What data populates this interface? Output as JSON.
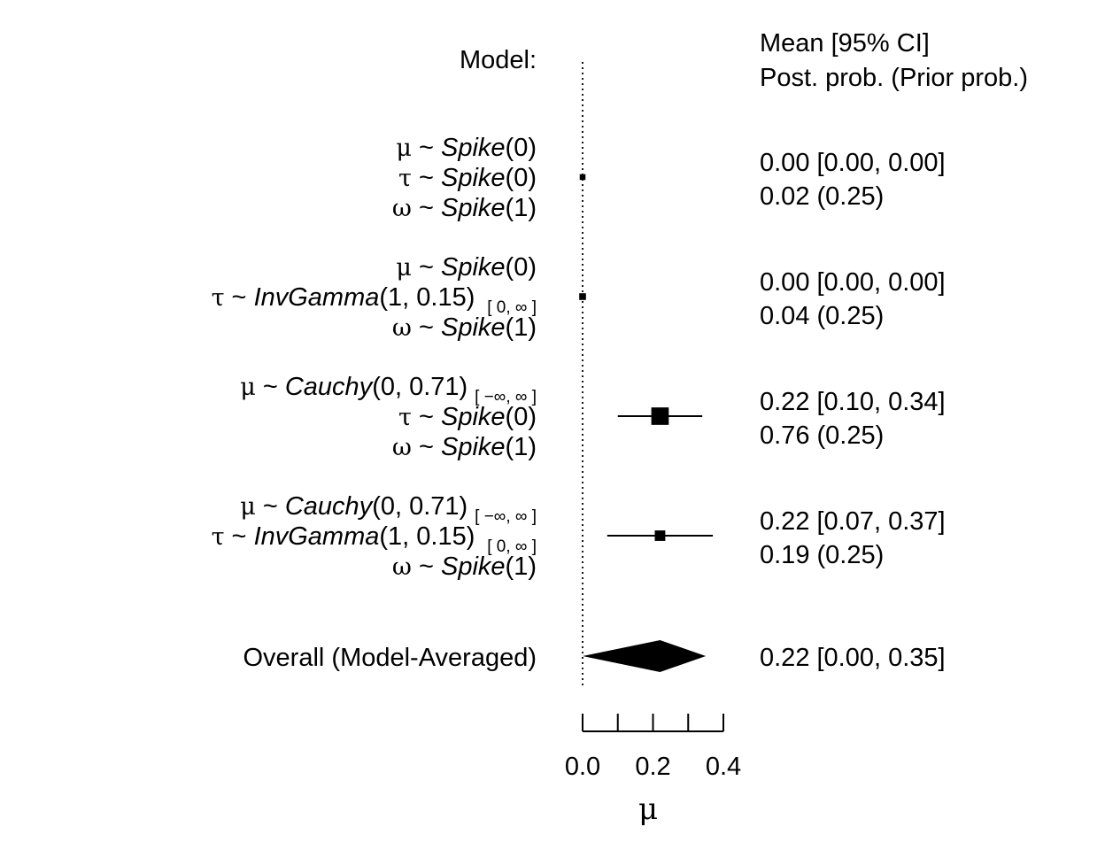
{
  "chart_data": {
    "type": "forest",
    "model_header": "Model:",
    "estimate_header": "Mean [95% CI]",
    "prob_header": "Post. prob. (Prior prob.)",
    "xlabel": "μ",
    "xlim": [
      0,
      0.4
    ],
    "xticks": [
      0,
      0.1,
      0.2,
      0.3,
      0.4
    ],
    "xtick_labels": [
      "0.0",
      "0.2",
      "0.4"
    ],
    "xtick_label_values": [
      0,
      0.2,
      0.4
    ],
    "reference_line": 0,
    "models": [
      {
        "priors": [
          {
            "sym": "μ",
            "dist": "Spike",
            "args": "(0)",
            "trunc": ""
          },
          {
            "sym": "τ",
            "dist": "Spike",
            "args": "(0)",
            "trunc": ""
          },
          {
            "sym": "ω",
            "dist": "Spike",
            "args": "(1)",
            "trunc": ""
          }
        ],
        "mean": 0.0,
        "lower": 0.0,
        "upper": 0.0,
        "estimate_text": "0.00 [0.00, 0.00]",
        "prob_text": "0.02 (0.25)",
        "post_prob": 0.02
      },
      {
        "priors": [
          {
            "sym": "μ",
            "dist": "Spike",
            "args": "(0)",
            "trunc": ""
          },
          {
            "sym": "τ",
            "dist": "InvGamma",
            "args": "(1, 0.15)",
            "trunc": "[ 0, ∞ ]"
          },
          {
            "sym": "ω",
            "dist": "Spike",
            "args": "(1)",
            "trunc": ""
          }
        ],
        "mean": 0.0,
        "lower": 0.0,
        "upper": 0.0,
        "estimate_text": "0.00 [0.00, 0.00]",
        "prob_text": "0.04 (0.25)",
        "post_prob": 0.04
      },
      {
        "priors": [
          {
            "sym": "μ",
            "dist": "Cauchy",
            "args": "(0, 0.71)",
            "trunc": "[ −∞, ∞ ]"
          },
          {
            "sym": "τ",
            "dist": "Spike",
            "args": "(0)",
            "trunc": ""
          },
          {
            "sym": "ω",
            "dist": "Spike",
            "args": "(1)",
            "trunc": ""
          }
        ],
        "mean": 0.22,
        "lower": 0.1,
        "upper": 0.34,
        "estimate_text": "0.22 [0.10, 0.34]",
        "prob_text": "0.76 (0.25)",
        "post_prob": 0.76
      },
      {
        "priors": [
          {
            "sym": "μ",
            "dist": "Cauchy",
            "args": "(0, 0.71)",
            "trunc": "[ −∞, ∞ ]"
          },
          {
            "sym": "τ",
            "dist": "InvGamma",
            "args": "(1, 0.15)",
            "trunc": "[ 0, ∞ ]"
          },
          {
            "sym": "ω",
            "dist": "Spike",
            "args": "(1)",
            "trunc": ""
          }
        ],
        "mean": 0.22,
        "lower": 0.07,
        "upper": 0.37,
        "estimate_text": "0.22 [0.07, 0.37]",
        "prob_text": "0.19 (0.25)",
        "post_prob": 0.19
      }
    ],
    "overall": {
      "label": "Overall (Model-Averaged)",
      "mean": 0.22,
      "lower": 0.0,
      "upper": 0.35,
      "estimate_text": "0.22 [0.00, 0.35]"
    }
  }
}
